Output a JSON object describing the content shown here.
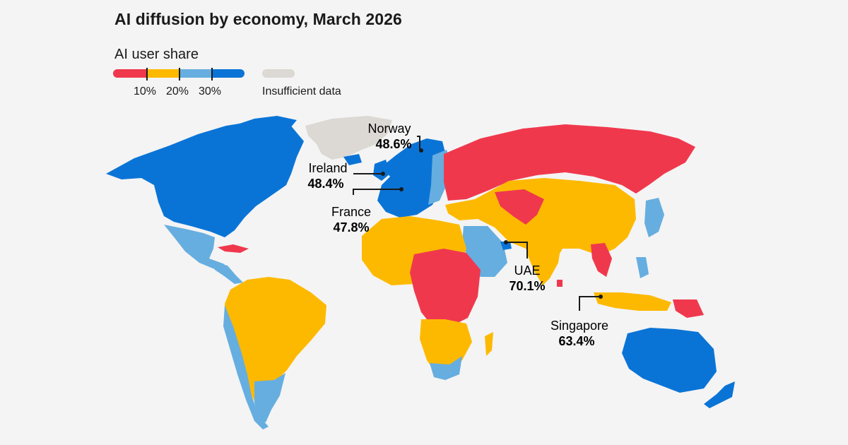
{
  "title": "AI diffusion by economy, March 2026",
  "legend": {
    "title": "AI user share",
    "ticks": [
      "10%",
      "20%",
      "30%"
    ],
    "no_data_label": "Insufficient data"
  },
  "colors": {
    "under_10": "#f0384d",
    "10_to_20": "#fdb900",
    "20_to_30": "#66aee0",
    "over_30": "#0a74d6",
    "no_data": "#dcd8d3",
    "leader_line": "#1a1a1a"
  },
  "callouts": [
    {
      "country": "Norway",
      "value": "48.6%"
    },
    {
      "country": "Ireland",
      "value": "48.4%"
    },
    {
      "country": "France",
      "value": "47.8%"
    },
    {
      "country": "UAE",
      "value": "70.1%"
    },
    {
      "country": "Singapore",
      "value": "63.4%"
    }
  ]
}
